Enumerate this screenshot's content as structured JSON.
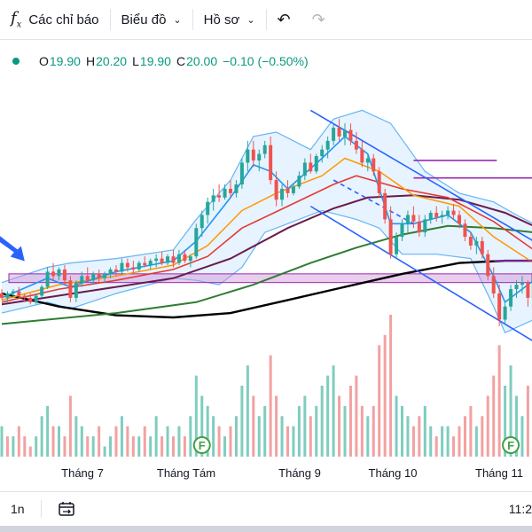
{
  "toolbar": {
    "indicators_label": "Các chỉ báo",
    "chart_label": "Biểu đồ",
    "profile_label": "Hồ sơ"
  },
  "legend": {
    "o_label": "O",
    "o_value": "19.90",
    "h_label": "H",
    "h_value": "20.20",
    "l_label": "L",
    "l_value": "19.90",
    "c_label": "C",
    "c_value": "20.00",
    "change": "−0.10 (−0.50%)"
  },
  "bottombar": {
    "interval": "1n",
    "time": "11:2"
  },
  "colors": {
    "up": "#26a69a",
    "down": "#ef5350",
    "vol_up": "#7fcdbf",
    "vol_down": "#f3a1a1",
    "ema_fast": "#2196f3",
    "ema_orange": "#ff9800",
    "ema_red": "#e53935",
    "ema_purple": "#6a1b4d",
    "ema_green": "#2e7d32",
    "ema_black": "#000000",
    "bollinger": "#64b5f6",
    "zone": "#ce93d8",
    "channel": "#2962ff"
  },
  "chart_data": {
    "type": "candlestick",
    "x_labels": [
      "Tháng 7",
      "Tháng Tám",
      "Tháng 9",
      "Tháng 10",
      "Tháng 11"
    ],
    "y_range": [
      17.5,
      23.6
    ],
    "candles": [
      [
        0,
        18.7,
        18.8,
        18.55,
        18.6
      ],
      [
        1,
        18.6,
        18.75,
        18.5,
        18.7
      ],
      [
        2,
        18.7,
        18.8,
        18.6,
        18.75
      ],
      [
        3,
        18.75,
        18.85,
        18.6,
        18.65
      ],
      [
        4,
        18.65,
        18.7,
        18.5,
        18.6
      ],
      [
        5,
        18.6,
        18.7,
        18.45,
        18.5
      ],
      [
        6,
        18.5,
        18.7,
        18.45,
        18.65
      ],
      [
        7,
        18.65,
        18.9,
        18.6,
        18.85
      ],
      [
        8,
        18.85,
        19.3,
        18.8,
        19.2
      ],
      [
        9,
        19.2,
        19.4,
        19.0,
        19.1
      ],
      [
        10,
        19.1,
        19.3,
        19.0,
        19.25
      ],
      [
        11,
        19.25,
        19.35,
        18.9,
        19.0
      ],
      [
        12,
        19.0,
        19.1,
        18.5,
        18.6
      ],
      [
        13,
        18.6,
        19.0,
        18.5,
        18.95
      ],
      [
        14,
        18.95,
        19.2,
        18.85,
        19.1
      ],
      [
        15,
        19.1,
        19.3,
        18.95,
        19.0
      ],
      [
        16,
        19.0,
        19.2,
        18.9,
        19.15
      ],
      [
        17,
        19.15,
        19.25,
        18.95,
        19.05
      ],
      [
        18,
        19.05,
        19.2,
        18.95,
        19.15
      ],
      [
        19,
        19.15,
        19.3,
        19.05,
        19.25
      ],
      [
        20,
        19.25,
        19.35,
        19.1,
        19.2
      ],
      [
        21,
        19.2,
        19.5,
        19.15,
        19.4
      ],
      [
        22,
        19.4,
        19.5,
        19.2,
        19.3
      ],
      [
        23,
        19.3,
        19.45,
        19.15,
        19.25
      ],
      [
        24,
        19.25,
        19.45,
        19.2,
        19.4
      ],
      [
        25,
        19.4,
        19.55,
        19.3,
        19.35
      ],
      [
        26,
        19.35,
        19.5,
        19.25,
        19.45
      ],
      [
        27,
        19.45,
        19.6,
        19.3,
        19.5
      ],
      [
        28,
        19.5,
        19.65,
        19.35,
        19.4
      ],
      [
        29,
        19.4,
        19.6,
        19.35,
        19.55
      ],
      [
        30,
        19.55,
        19.7,
        19.3,
        19.4
      ],
      [
        31,
        19.4,
        19.7,
        19.35,
        19.6
      ],
      [
        32,
        19.6,
        19.7,
        19.4,
        19.45
      ],
      [
        33,
        19.45,
        19.6,
        19.3,
        19.55
      ],
      [
        34,
        19.55,
        20.3,
        19.5,
        20.2
      ],
      [
        35,
        20.2,
        20.6,
        20.0,
        20.5
      ],
      [
        36,
        20.5,
        20.9,
        20.3,
        20.8
      ],
      [
        37,
        20.8,
        21.1,
        20.6,
        20.95
      ],
      [
        38,
        20.95,
        21.2,
        20.8,
        20.9
      ],
      [
        39,
        20.9,
        21.2,
        20.85,
        21.1
      ],
      [
        40,
        21.1,
        21.3,
        20.9,
        21.0
      ],
      [
        41,
        21.0,
        21.3,
        20.9,
        21.2
      ],
      [
        42,
        21.2,
        21.8,
        21.1,
        21.7
      ],
      [
        43,
        21.7,
        22.2,
        21.5,
        22.0
      ],
      [
        44,
        22.0,
        22.2,
        21.6,
        21.75
      ],
      [
        45,
        21.75,
        22.0,
        21.5,
        21.9
      ],
      [
        46,
        21.9,
        22.2,
        21.8,
        22.1
      ],
      [
        47,
        22.1,
        22.3,
        21.2,
        21.3
      ],
      [
        48,
        21.3,
        21.5,
        20.7,
        20.85
      ],
      [
        49,
        20.85,
        21.2,
        20.7,
        21.1
      ],
      [
        50,
        21.1,
        21.3,
        20.9,
        21.0
      ],
      [
        51,
        21.0,
        21.2,
        20.95,
        21.15
      ],
      [
        52,
        21.15,
        21.5,
        21.1,
        21.4
      ],
      [
        53,
        21.4,
        21.8,
        21.3,
        21.7
      ],
      [
        54,
        21.7,
        21.9,
        21.45,
        21.5
      ],
      [
        55,
        21.5,
        21.9,
        21.45,
        21.85
      ],
      [
        56,
        21.85,
        22.1,
        21.7,
        22.0
      ],
      [
        57,
        22.0,
        22.3,
        21.8,
        22.2
      ],
      [
        58,
        22.2,
        22.6,
        22.1,
        22.5
      ],
      [
        59,
        22.5,
        22.7,
        22.2,
        22.3
      ],
      [
        60,
        22.3,
        22.6,
        22.1,
        22.45
      ],
      [
        61,
        22.45,
        22.6,
        22.1,
        22.2
      ],
      [
        62,
        22.2,
        22.4,
        21.9,
        22.0
      ],
      [
        63,
        22.0,
        22.2,
        21.6,
        21.7
      ],
      [
        64,
        21.7,
        21.9,
        21.5,
        21.8
      ],
      [
        65,
        21.8,
        21.9,
        21.4,
        21.5
      ],
      [
        66,
        21.5,
        21.6,
        20.9,
        21.0
      ],
      [
        67,
        21.0,
        21.1,
        20.3,
        20.4
      ],
      [
        68,
        20.4,
        20.7,
        19.5,
        19.6
      ],
      [
        69,
        19.6,
        20.1,
        19.5,
        20.0
      ],
      [
        70,
        20.0,
        20.4,
        19.9,
        20.3
      ],
      [
        71,
        20.3,
        20.6,
        20.1,
        20.5
      ],
      [
        72,
        20.5,
        20.7,
        20.2,
        20.35
      ],
      [
        73,
        20.35,
        20.5,
        20.0,
        20.1
      ],
      [
        74,
        20.1,
        20.5,
        20.0,
        20.4
      ],
      [
        75,
        20.4,
        20.6,
        20.3,
        20.55
      ],
      [
        76,
        20.55,
        20.7,
        20.35,
        20.45
      ],
      [
        77,
        20.45,
        20.6,
        20.3,
        20.5
      ],
      [
        78,
        20.5,
        20.7,
        20.4,
        20.6
      ],
      [
        79,
        20.6,
        20.75,
        20.4,
        20.5
      ],
      [
        80,
        20.5,
        20.6,
        20.2,
        20.3
      ],
      [
        81,
        20.3,
        20.4,
        19.9,
        20.0
      ],
      [
        82,
        20.0,
        20.1,
        19.7,
        19.8
      ],
      [
        83,
        19.8,
        20.0,
        19.6,
        19.9
      ],
      [
        84,
        19.9,
        20.0,
        19.5,
        19.6
      ],
      [
        85,
        19.6,
        19.7,
        19.0,
        19.1
      ],
      [
        86,
        19.1,
        19.3,
        18.6,
        18.7
      ],
      [
        87,
        18.7,
        18.9,
        17.95,
        18.1
      ],
      [
        88,
        18.1,
        18.5,
        18.0,
        18.4
      ],
      [
        89,
        18.4,
        18.9,
        18.3,
        18.8
      ],
      [
        90,
        18.8,
        19.0,
        18.6,
        18.9
      ],
      [
        91,
        18.9,
        19.1,
        18.7,
        18.95
      ],
      [
        92,
        18.95,
        19.0,
        18.4,
        18.6
      ],
      [
        93,
        18.6,
        19.3,
        18.5,
        19.2
      ]
    ],
    "volumes": [
      [
        0,
        3,
        0
      ],
      [
        1,
        2,
        1
      ],
      [
        2,
        2,
        0
      ],
      [
        3,
        3,
        1
      ],
      [
        4,
        2,
        1
      ],
      [
        5,
        1,
        1
      ],
      [
        6,
        2,
        0
      ],
      [
        7,
        4,
        0
      ],
      [
        8,
        5,
        0
      ],
      [
        9,
        3,
        1
      ],
      [
        10,
        3,
        0
      ],
      [
        11,
        2,
        1
      ],
      [
        12,
        6,
        1
      ],
      [
        13,
        4,
        0
      ],
      [
        14,
        3,
        0
      ],
      [
        15,
        2,
        1
      ],
      [
        16,
        2,
        0
      ],
      [
        17,
        3,
        1
      ],
      [
        18,
        1,
        0
      ],
      [
        19,
        2,
        0
      ],
      [
        20,
        3,
        1
      ],
      [
        21,
        4,
        0
      ],
      [
        22,
        3,
        1
      ],
      [
        23,
        2,
        1
      ],
      [
        24,
        2,
        0
      ],
      [
        25,
        3,
        1
      ],
      [
        26,
        2,
        0
      ],
      [
        27,
        4,
        0
      ],
      [
        28,
        2,
        1
      ],
      [
        29,
        3,
        0
      ],
      [
        30,
        2,
        1
      ],
      [
        31,
        3,
        0
      ],
      [
        32,
        2,
        1
      ],
      [
        33,
        4,
        0
      ],
      [
        34,
        8,
        0
      ],
      [
        35,
        6,
        0
      ],
      [
        36,
        5,
        0
      ],
      [
        37,
        4,
        0
      ],
      [
        38,
        3,
        1
      ],
      [
        39,
        2,
        0
      ],
      [
        40,
        3,
        1
      ],
      [
        41,
        4,
        0
      ],
      [
        42,
        7,
        0
      ],
      [
        43,
        9,
        0
      ],
      [
        44,
        6,
        1
      ],
      [
        45,
        4,
        0
      ],
      [
        46,
        5,
        0
      ],
      [
        47,
        10,
        1
      ],
      [
        48,
        6,
        1
      ],
      [
        49,
        4,
        0
      ],
      [
        50,
        3,
        1
      ],
      [
        51,
        3,
        0
      ],
      [
        52,
        5,
        0
      ],
      [
        53,
        6,
        0
      ],
      [
        54,
        4,
        1
      ],
      [
        55,
        5,
        0
      ],
      [
        56,
        7,
        0
      ],
      [
        57,
        8,
        0
      ],
      [
        58,
        9,
        0
      ],
      [
        59,
        6,
        1
      ],
      [
        60,
        5,
        0
      ],
      [
        61,
        7,
        1
      ],
      [
        62,
        8,
        1
      ],
      [
        63,
        5,
        1
      ],
      [
        64,
        4,
        0
      ],
      [
        65,
        5,
        1
      ],
      [
        66,
        11,
        1
      ],
      [
        67,
        12,
        1
      ],
      [
        68,
        14,
        1
      ],
      [
        69,
        6,
        0
      ],
      [
        70,
        5,
        0
      ],
      [
        71,
        4,
        0
      ],
      [
        72,
        3,
        1
      ],
      [
        73,
        4,
        1
      ],
      [
        74,
        5,
        0
      ],
      [
        75,
        3,
        0
      ],
      [
        76,
        2,
        1
      ],
      [
        77,
        3,
        0
      ],
      [
        78,
        3,
        0
      ],
      [
        79,
        2,
        1
      ],
      [
        80,
        3,
        1
      ],
      [
        81,
        4,
        1
      ],
      [
        82,
        5,
        1
      ],
      [
        83,
        3,
        0
      ],
      [
        84,
        4,
        1
      ],
      [
        85,
        6,
        1
      ],
      [
        86,
        8,
        1
      ],
      [
        87,
        11,
        1
      ],
      [
        88,
        7,
        0
      ],
      [
        89,
        9,
        0
      ],
      [
        90,
        6,
        0
      ],
      [
        91,
        4,
        0
      ],
      [
        92,
        7,
        1
      ],
      [
        93,
        5,
        0
      ]
    ],
    "ema_fast": [
      [
        0,
        18.6
      ],
      [
        8,
        19.05
      ],
      [
        12,
        18.85
      ],
      [
        20,
        19.2
      ],
      [
        30,
        19.45
      ],
      [
        34,
        19.9
      ],
      [
        40,
        20.9
      ],
      [
        44,
        21.65
      ],
      [
        47,
        21.5
      ],
      [
        50,
        21.1
      ],
      [
        56,
        21.8
      ],
      [
        60,
        22.3
      ],
      [
        64,
        21.9
      ],
      [
        68,
        20.3
      ],
      [
        72,
        20.3
      ],
      [
        78,
        20.5
      ],
      [
        82,
        20.1
      ],
      [
        86,
        19.1
      ],
      [
        88,
        18.5
      ],
      [
        93,
        19.0
      ]
    ],
    "ema_orange": [
      [
        0,
        18.55
      ],
      [
        10,
        18.9
      ],
      [
        20,
        19.1
      ],
      [
        30,
        19.35
      ],
      [
        36,
        19.8
      ],
      [
        42,
        20.6
      ],
      [
        48,
        21.0
      ],
      [
        56,
        21.4
      ],
      [
        60,
        21.8
      ],
      [
        66,
        21.5
      ],
      [
        72,
        20.95
      ],
      [
        80,
        20.7
      ],
      [
        86,
        20.0
      ],
      [
        93,
        19.4
      ]
    ],
    "ema_red": [
      [
        0,
        18.5
      ],
      [
        10,
        18.8
      ],
      [
        20,
        19.0
      ],
      [
        30,
        19.25
      ],
      [
        36,
        19.55
      ],
      [
        42,
        20.2
      ],
      [
        50,
        20.7
      ],
      [
        58,
        21.2
      ],
      [
        62,
        21.4
      ],
      [
        70,
        21.1
      ],
      [
        78,
        20.9
      ],
      [
        86,
        20.35
      ],
      [
        93,
        19.7
      ]
    ],
    "ema_purple": [
      [
        0,
        18.45
      ],
      [
        15,
        18.75
      ],
      [
        30,
        19.05
      ],
      [
        40,
        19.5
      ],
      [
        50,
        20.2
      ],
      [
        58,
        20.65
      ],
      [
        64,
        20.9
      ],
      [
        72,
        20.95
      ],
      [
        80,
        20.85
      ],
      [
        88,
        20.55
      ],
      [
        93,
        20.25
      ]
    ],
    "ema_green": [
      [
        0,
        18.0
      ],
      [
        20,
        18.25
      ],
      [
        34,
        18.5
      ],
      [
        44,
        18.9
      ],
      [
        54,
        19.4
      ],
      [
        62,
        19.75
      ],
      [
        70,
        20.05
      ],
      [
        78,
        20.25
      ],
      [
        86,
        20.2
      ],
      [
        93,
        20.1
      ]
    ],
    "ema_black": [
      [
        0,
        18.7
      ],
      [
        10,
        18.4
      ],
      [
        20,
        18.2
      ],
      [
        30,
        18.15
      ],
      [
        40,
        18.25
      ],
      [
        50,
        18.55
      ],
      [
        60,
        18.85
      ],
      [
        70,
        19.15
      ],
      [
        80,
        19.4
      ],
      [
        88,
        19.45
      ],
      [
        93,
        19.45
      ]
    ],
    "bb_upper": [
      [
        0,
        18.95
      ],
      [
        8,
        19.3
      ],
      [
        12,
        19.4
      ],
      [
        20,
        19.5
      ],
      [
        30,
        19.7
      ],
      [
        34,
        20.4
      ],
      [
        40,
        21.3
      ],
      [
        44,
        22.3
      ],
      [
        48,
        22.4
      ],
      [
        54,
        22.0
      ],
      [
        58,
        22.7
      ],
      [
        63,
        22.9
      ],
      [
        68,
        22.6
      ],
      [
        74,
        21.5
      ],
      [
        80,
        21.0
      ],
      [
        86,
        20.8
      ],
      [
        90,
        20.5
      ],
      [
        93,
        20.3
      ]
    ],
    "bb_lower": [
      [
        0,
        18.25
      ],
      [
        8,
        18.5
      ],
      [
        12,
        18.35
      ],
      [
        20,
        18.7
      ],
      [
        30,
        19.05
      ],
      [
        34,
        19.0
      ],
      [
        38,
        18.9
      ],
      [
        42,
        19.3
      ],
      [
        46,
        20.1
      ],
      [
        50,
        20.3
      ],
      [
        56,
        20.6
      ],
      [
        62,
        20.4
      ],
      [
        66,
        20.2
      ],
      [
        70,
        19.6
      ],
      [
        76,
        19.6
      ],
      [
        82,
        19.5
      ],
      [
        86,
        18.4
      ],
      [
        88,
        17.8
      ],
      [
        93,
        18.1
      ]
    ],
    "channel_upper": [
      [
        54,
        22.9
      ],
      [
        93,
        19.9
      ]
    ],
    "channel_lower": [
      [
        54,
        20.7
      ],
      [
        93,
        17.6
      ]
    ],
    "channel_mid": [
      [
        58,
        21.3
      ],
      [
        72,
        20.3
      ]
    ],
    "zone": [
      18.95,
      19.15
    ],
    "resistance_levels": [
      [
        72,
        85,
        21.75
      ],
      [
        72,
        93,
        21.35
      ],
      [
        86,
        93,
        19.45
      ]
    ],
    "arrow_at": [
      4,
      19.4
    ],
    "markers": [
      [
        35,
        "F"
      ],
      [
        89,
        "F"
      ]
    ]
  }
}
